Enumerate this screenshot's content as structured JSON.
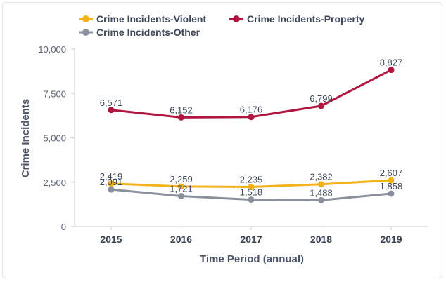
{
  "chart_data": {
    "type": "line",
    "categories": [
      "2015",
      "2016",
      "2017",
      "2018",
      "2019"
    ],
    "series": [
      {
        "name": "Crime Incidents-Violent",
        "color": "#f3b21a",
        "values": [
          2419,
          2259,
          2235,
          2382,
          2607
        ]
      },
      {
        "name": "Crime Incidents-Property",
        "color": "#b0163f",
        "values": [
          6571,
          6152,
          6176,
          6799,
          8827
        ]
      },
      {
        "name": "Crime Incidents-Other",
        "color": "#8a909c",
        "values": [
          2091,
          1721,
          1518,
          1488,
          1858
        ]
      }
    ],
    "data_labels": {
      "Crime Incidents-Violent": [
        "2,419",
        "2,259",
        "2,235",
        "2,382",
        "2,607"
      ],
      "Crime Incidents-Property": [
        "6,571",
        "6,152",
        "6,176",
        "6,799",
        "8,827"
      ],
      "Crime Incidents-Other": [
        "2,091",
        "1,721",
        "1,518",
        "1,488",
        "1,858"
      ]
    },
    "xlabel": "Time Period (annual)",
    "ylabel": "Crime Incidents",
    "ylim": [
      0,
      10000
    ],
    "yticks": [
      0,
      2500,
      5000,
      7500,
      10000
    ],
    "ytick_labels": [
      "0",
      "2,500",
      "5,000",
      "7,500",
      "10,000"
    ],
    "grid": false,
    "legend_position": "top-left"
  }
}
